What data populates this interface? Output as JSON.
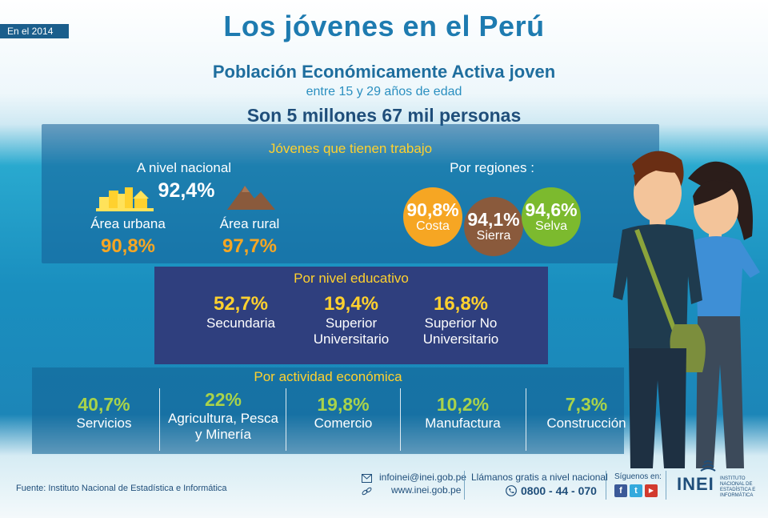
{
  "header": {
    "year_badge": "En el 2014",
    "title": "Los jóvenes en el Perú",
    "subtitle": "Población Económicamente Activa joven",
    "age_range": "entre 15 y 29 años de edad",
    "total": "Son 5 millones 67 mil personas"
  },
  "employment": {
    "title": "Jóvenes que tienen trabajo",
    "national": {
      "label": "A nivel nacional",
      "value": "92,4%"
    },
    "urban": {
      "label": "Área urbana",
      "value": "90,8%"
    },
    "rural": {
      "label": "Área rural",
      "value": "97,7%"
    },
    "regions": {
      "label": "Por regiones :",
      "items": [
        {
          "value": "90,8%",
          "label": "Costa",
          "color": "#f6a623"
        },
        {
          "value": "94,1%",
          "label": "Sierra",
          "color": "#8a5a3c"
        },
        {
          "value": "94,6%",
          "label": "Selva",
          "color": "#7cba2e"
        }
      ]
    }
  },
  "education": {
    "title": "Por nivel educativo",
    "items": [
      {
        "value": "52,7%",
        "label_1": "Secundaria",
        "label_2": ""
      },
      {
        "value": "19,4%",
        "label_1": "Superior",
        "label_2": "Universitario"
      },
      {
        "value": "16,8%",
        "label_1": "Superior No",
        "label_2": "Universitario"
      }
    ]
  },
  "activity": {
    "title": "Por actividad económica",
    "items": [
      {
        "value": "40,7%",
        "label_1": "Servicios",
        "label_2": ""
      },
      {
        "value": "22%",
        "label_1": "Agricultura, Pesca",
        "label_2": "y Minería"
      },
      {
        "value": "19,8%",
        "label_1": "Comercio",
        "label_2": ""
      },
      {
        "value": "10,2%",
        "label_1": "Manufactura",
        "label_2": ""
      },
      {
        "value": "7,3%",
        "label_1": "Construcción",
        "label_2": ""
      }
    ]
  },
  "footer": {
    "source": "Fuente:  Instituto Nacional de Estadística e Informática",
    "email": "infoinei@inei.gob.pe",
    "web": "www.inei.gob.pe",
    "call_label": "Llámanos gratis a nivel nacional",
    "phone": "0800 - 44 - 070",
    "follow": "Síguenos en:",
    "logo": "INEI",
    "logo_sub_1": "INSTITUTO",
    "logo_sub_2": "NACIONAL DE",
    "logo_sub_3": "ESTADÍSTICA E",
    "logo_sub_4": "INFORMÁTICA"
  },
  "colors": {
    "title_blue": "#1e7bb0",
    "highlight_yellow": "#ffd12e",
    "highlight_orange": "#f6a623",
    "highlight_green": "#a9d34a",
    "education_panel": "#2f3f7e"
  },
  "icons": [
    "city-icon",
    "mountain-icon",
    "email-icon",
    "link-icon",
    "phone-icon",
    "facebook-icon",
    "twitter-icon",
    "youtube-icon"
  ]
}
